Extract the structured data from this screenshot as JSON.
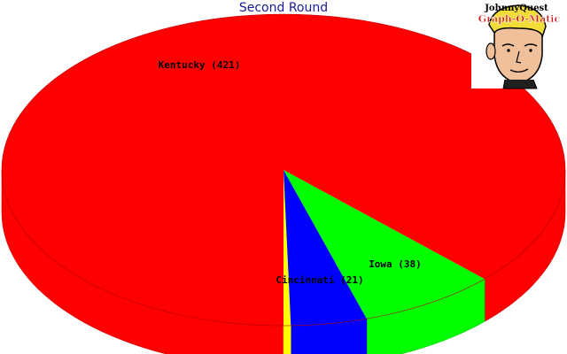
{
  "chart_data": {
    "type": "pie",
    "title": "Second Round",
    "slices": [
      {
        "name": "Kentucky",
        "value": 421,
        "label": "Kentucky (421)",
        "color": "#ff0000"
      },
      {
        "name": "Iowa",
        "value": 38,
        "label": "Iowa (38)",
        "color": "#00ff00"
      },
      {
        "name": "Cincinnati",
        "value": 21,
        "label": "Cincinnati (21)",
        "color": "#0000ff"
      },
      {
        "name": "",
        "value": 2,
        "label": "",
        "color": "#ffff00"
      }
    ]
  },
  "logo": {
    "line1": "JohnnyQuest",
    "line2": "Graph-O-Matic"
  }
}
